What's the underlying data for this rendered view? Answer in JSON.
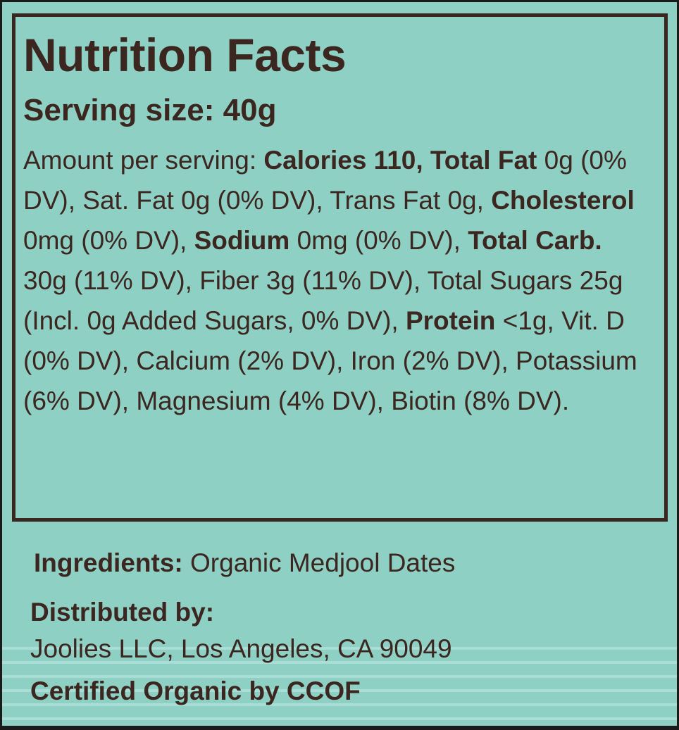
{
  "colors": {
    "background": "#8fd0c5",
    "text": "#3b2620",
    "frame": "#1a1a1a"
  },
  "nutrition": {
    "title": "Nutrition Facts",
    "serving": "Serving size: 40g",
    "amount_intro": "Amount per serving: ",
    "calories_total_fat": "Calories 110, Total Fat",
    "fat_detail": " 0g (0% DV), Sat. Fat 0g (0% DV), Trans Fat 0g, ",
    "cholesterol_label": "Cholesterol",
    "cholesterol_value": " 0mg (0% DV), ",
    "sodium_label": "Sodium",
    "sodium_value": " 0mg (0% DV), ",
    "carb_label": "Total Carb.",
    "carb_value": " 30g (11% DV), Fiber 3g (11% DV), Total Sugars 25g (Incl. 0g Added Sugars, 0% DV), ",
    "protein_label": "Protein",
    "protein_value": " <1g, Vit. D (0% DV), Calcium (2% DV), Iron (2% DV), Potassium (6% DV), Magnesium (4% DV), Biotin (8% DV)."
  },
  "ingredients": {
    "label": "Ingredients:",
    "value": " Organic Medjool Dates"
  },
  "distributor": {
    "label": "Distributed by:",
    "address": "Joolies LLC, Los Angeles, CA 90049"
  },
  "certification": "Certified Organic by CCOF"
}
